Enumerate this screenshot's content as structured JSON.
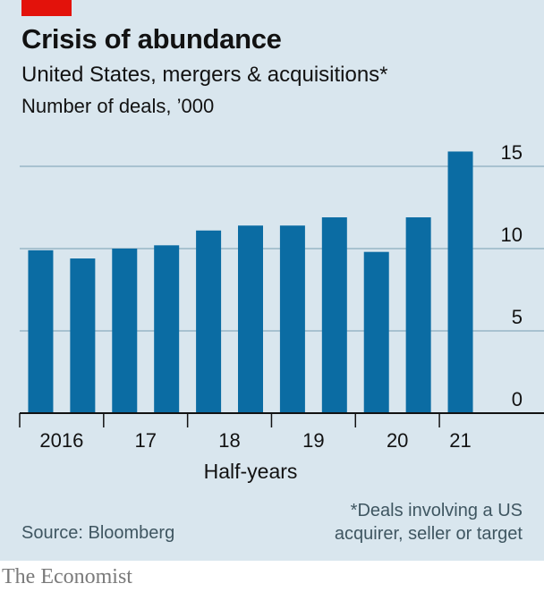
{
  "header": {
    "title": "Crisis of abundance",
    "subtitle": "United States, mergers & acquisitions*",
    "units": "Number of deals, ’000"
  },
  "footer": {
    "source": "Source: Bloomberg",
    "footnote_line1": "*Deals involving a US",
    "footnote_line2": "acquirer, seller or target",
    "brand": "The Economist"
  },
  "colors": {
    "bar": "#0b6ca3",
    "accent": "#e3120b",
    "grid": "#98b6c6",
    "axis": "#121212",
    "background": "#d9e6ee"
  },
  "chart_data": {
    "type": "bar",
    "title": "Crisis of abundance",
    "subtitle": "United States, mergers & acquisitions*",
    "ylabel": "Number of deals, ’000",
    "xlabel": "Half-years",
    "ylim": [
      0,
      15
    ],
    "yticks": [
      0,
      5,
      10,
      15
    ],
    "ytick_labels": [
      "0",
      "5",
      "10",
      "15"
    ],
    "grid": true,
    "year_labels": [
      "2016",
      "17",
      "18",
      "19",
      "20",
      "21"
    ],
    "categories": [
      "2016 H1",
      "2016 H2",
      "2017 H1",
      "2017 H2",
      "2018 H1",
      "2018 H2",
      "2019 H1",
      "2019 H2",
      "2020 H1",
      "2020 H2",
      "2021 H1"
    ],
    "values": [
      9.9,
      9.4,
      10.0,
      10.2,
      11.1,
      11.4,
      11.4,
      11.9,
      9.8,
      11.9,
      15.9
    ]
  }
}
